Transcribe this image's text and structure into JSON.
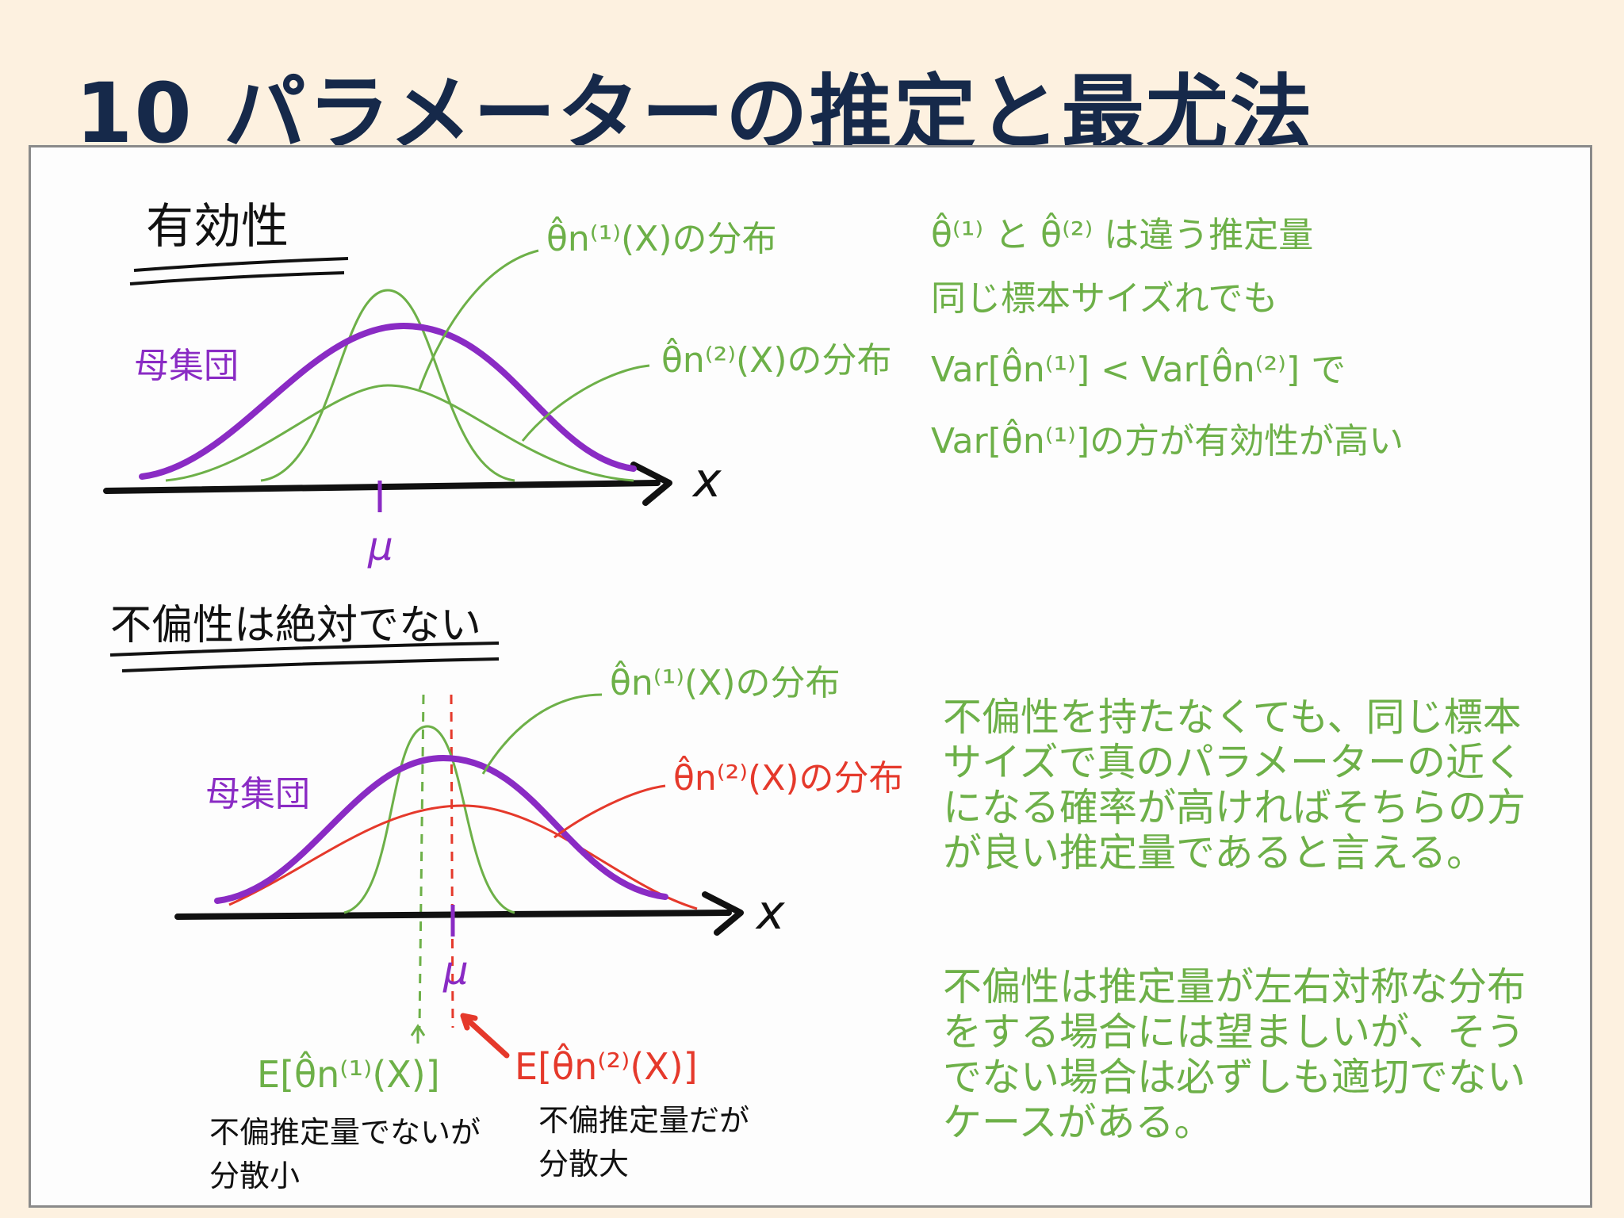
{
  "title": "10 パラメーターの推定と最尤法",
  "section1": {
    "heading": "有効性",
    "population_label": "母集団",
    "dist1_label": "θ̂n⁽¹⁾(X)の分布",
    "dist2_label": "θ̂n⁽²⁾(X)の分布",
    "axis_label": "x",
    "mu_label": "μ",
    "note_lines": [
      "θ̂⁽¹⁾ と θ̂⁽²⁾ は違う推定量",
      "同じ標本サイズれでも",
      "Var[θ̂n⁽¹⁾] < Var[θ̂n⁽²⁾] で",
      "Var[θ̂n⁽¹⁾]の方が有効性が高い"
    ]
  },
  "section2": {
    "heading": "不偏性は絶対でない",
    "population_label": "母集団",
    "dist1_label": "θ̂n⁽¹⁾(X)の分布",
    "dist2_label": "θ̂n⁽²⁾(X)の分布",
    "axis_label": "x",
    "mu_label": "μ",
    "expect1_label": "E[θ̂n⁽¹⁾(X)]",
    "expect2_label": "E[θ̂n⁽²⁾(X)]",
    "caption1_lines": [
      "不偏推定量でないが",
      "分散小"
    ],
    "caption2_lines": [
      "不偏推定量だが",
      "分散大"
    ]
  },
  "notes": {
    "para1": "不偏性を持たなくても、同じ標本サイズで真のパラメーターの近くになる確率が高ければそちらの方が良い推定量であると言える。",
    "para2": "不偏性は推定量が左右対称な分布をする場合には望ましいが、そうでない場合は必ずしも適切でないケースがある。"
  },
  "colors": {
    "population": "#8a2bc4",
    "estimator1": "#6db048",
    "estimator2_sec1": "#6db048",
    "estimator2_sec2": "#e5392b",
    "ink": "#111111",
    "title": "#16294a"
  }
}
